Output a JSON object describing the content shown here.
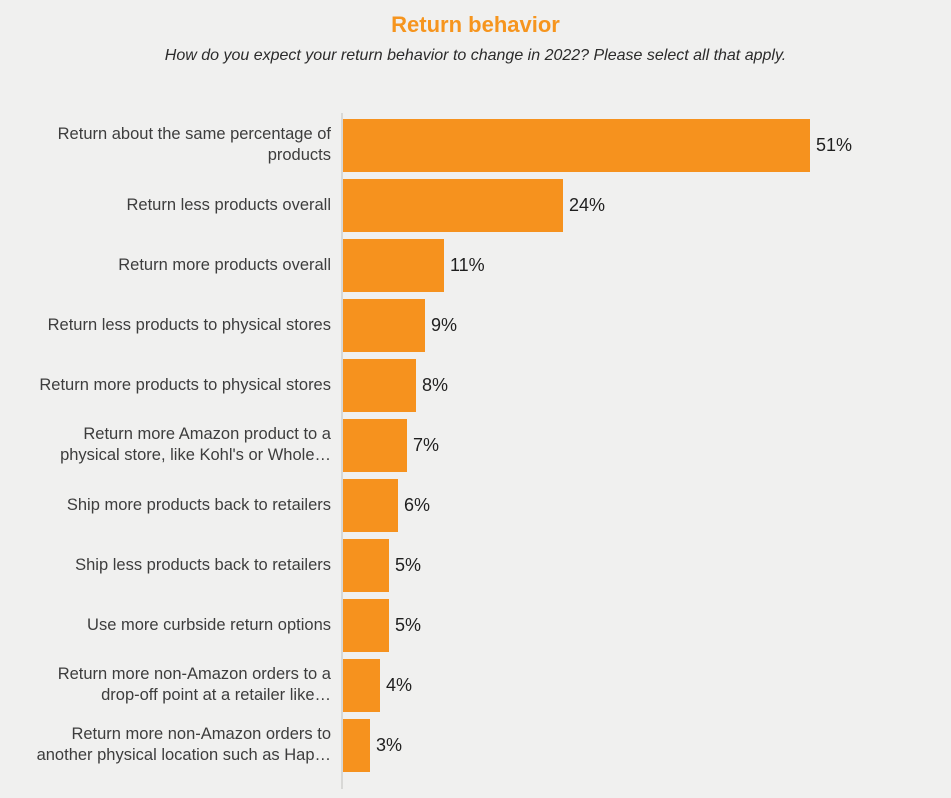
{
  "chart_data": {
    "type": "bar",
    "orientation": "horizontal",
    "title": "Return behavior",
    "subtitle": "How do you expect your return behavior to change in 2022? Please select all that apply.",
    "categories": [
      "Return about the same percentage of products",
      "Return less products overall",
      "Return more products overall",
      "Return less products to physical stores",
      "Return more products to physical stores",
      "Return more Amazon product to a physical store, like Kohl's or Whole…",
      "Ship more products back to retailers",
      "Ship less products back to retailers",
      "Use more curbside return options",
      "Return more non-Amazon orders to a drop-off point at a retailer like…",
      "Return more non-Amazon orders to another physical location such as Hap…"
    ],
    "values": [
      51,
      24,
      11,
      9,
      8,
      7,
      6,
      5,
      5,
      4,
      3
    ],
    "value_labels": [
      "51%",
      "24%",
      "11%",
      "9%",
      "8%",
      "7%",
      "6%",
      "5%",
      "5%",
      "4%",
      "3%"
    ],
    "unit": "%",
    "xlim": [
      0,
      65
    ],
    "grid": false,
    "legend": "none",
    "colors": {
      "bar": "#F6921E",
      "title": "#F6951E",
      "background": "#F0F0EF",
      "axis": "#D8D8D6",
      "label_text": "#3D3D3D",
      "value_text": "#1F1F1F",
      "subtitle_text": "#2B2B2B"
    }
  }
}
